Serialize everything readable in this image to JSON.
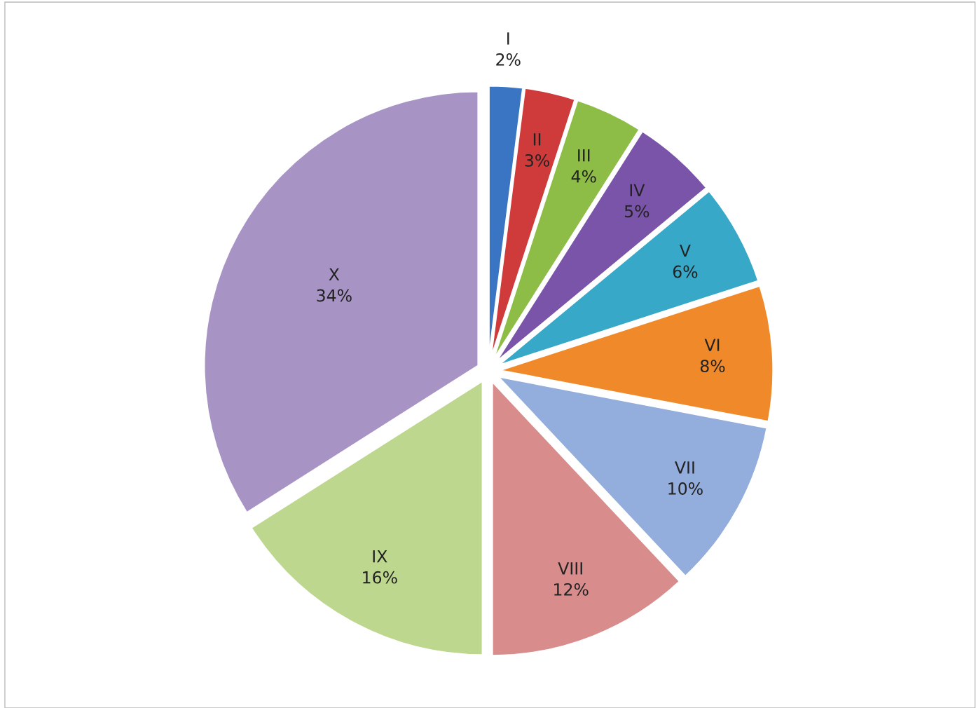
{
  "chart_data": {
    "type": "pie",
    "categories": [
      "I",
      "II",
      "III",
      "IV",
      "V",
      "VI",
      "VII",
      "VIII",
      "IX",
      "X"
    ],
    "values": [
      2,
      3,
      4,
      5,
      6,
      8,
      10,
      12,
      16,
      34
    ],
    "value_labels": [
      "2%",
      "3%",
      "4%",
      "5%",
      "6%",
      "8%",
      "10%",
      "12%",
      "16%",
      "34%"
    ],
    "colors": [
      "#3a75c4",
      "#cf3b3b",
      "#8dbd46",
      "#7a54a8",
      "#37a8c8",
      "#f0892a",
      "#93aedd",
      "#d98c8c",
      "#bdd78f",
      "#a794c5"
    ],
    "legend": false
  }
}
